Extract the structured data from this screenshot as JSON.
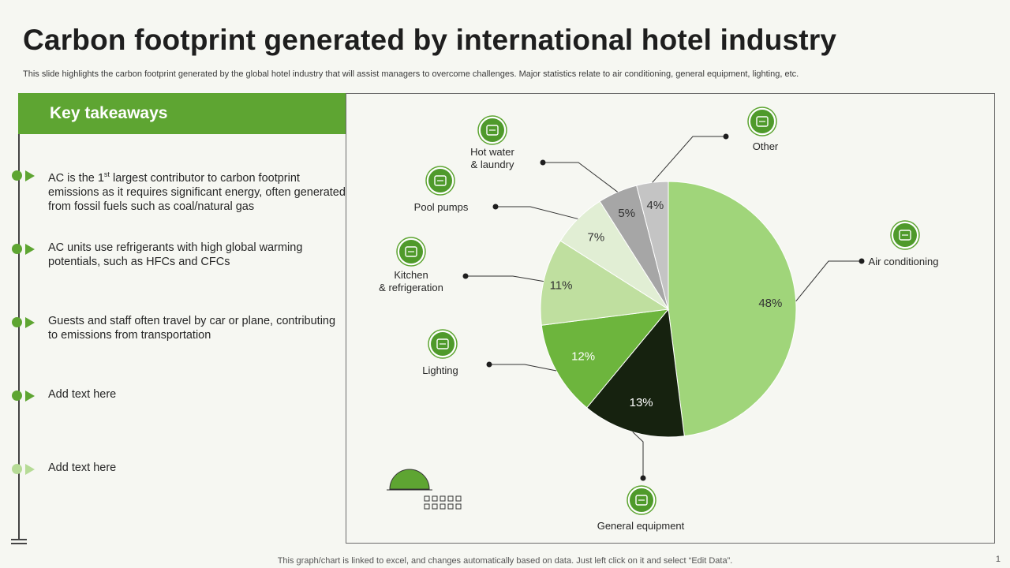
{
  "title": "Carbon footprint generated by international hotel industry",
  "subtitle": "This slide highlights the carbon footprint generated by the global hotel industry that will assist managers to overcome challenges. Major statistics relate to air conditioning, general equipment, lighting, etc.",
  "takeaways": {
    "header": "Key takeaways",
    "items": [
      {
        "pre": "AC is the 1",
        "sup": "st",
        "post": " largest contributor to carbon footprint emissions as it requires significant energy, often generated from fossil fuels such as coal/natural gas"
      },
      {
        "text": "AC units use refrigerants with high global warming potentials, such as HFCs and CFCs"
      },
      {
        "text": "Guests and staff often travel by car or plane, contributing to emissions from transportation"
      },
      {
        "text": "Add text here"
      },
      {
        "text": "Add text here"
      }
    ]
  },
  "footer": "This graph/chart is linked to excel,  and changes automatically based on data. Just left click on it and select “Edit Data”.",
  "page_number": "1",
  "colors": {
    "accent": "#5ea532",
    "air_conditioning": "#a0d57a",
    "general_equipment": "#16220f",
    "lighting": "#6db53d",
    "kitchen": "#bfdf9f",
    "pool": "#e1eed4",
    "hot_water": "#a6a6a6",
    "other": "#c4c4c4"
  },
  "chart_data": {
    "type": "pie",
    "slices": [
      {
        "label": "Air conditioning",
        "value": 48,
        "value_label": "48%",
        "color": "#a0d57a",
        "icon": "air-conditioner-icon"
      },
      {
        "label": "General  equipment",
        "value": 13,
        "value_label": "13%",
        "color": "#16220f",
        "icon": "monitor-icon"
      },
      {
        "label": "Lighting",
        "value": 12,
        "value_label": "12%",
        "color": "#6db53d",
        "icon": "light-bulb-icon"
      },
      {
        "label": "Kitchen\n& refrigeration",
        "value": 11,
        "value_label": "11%",
        "color": "#bfdf9f",
        "icon": "refrigerator-icon"
      },
      {
        "label": "Pool pumps",
        "value": 7,
        "value_label": "7%",
        "color": "#e1eed4",
        "icon": "pool-pump-icon"
      },
      {
        "label": "Hot water\n& laundry",
        "value": 5,
        "value_label": "5%",
        "color": "#a6a6a6",
        "icon": "water-heater-icon"
      },
      {
        "label": "Other",
        "value": 4,
        "value_label": "4%",
        "color": "#c4c4c4",
        "icon": "leaf-gear-icon"
      }
    ],
    "start_angle_deg": 0,
    "direction": "clockwise"
  }
}
